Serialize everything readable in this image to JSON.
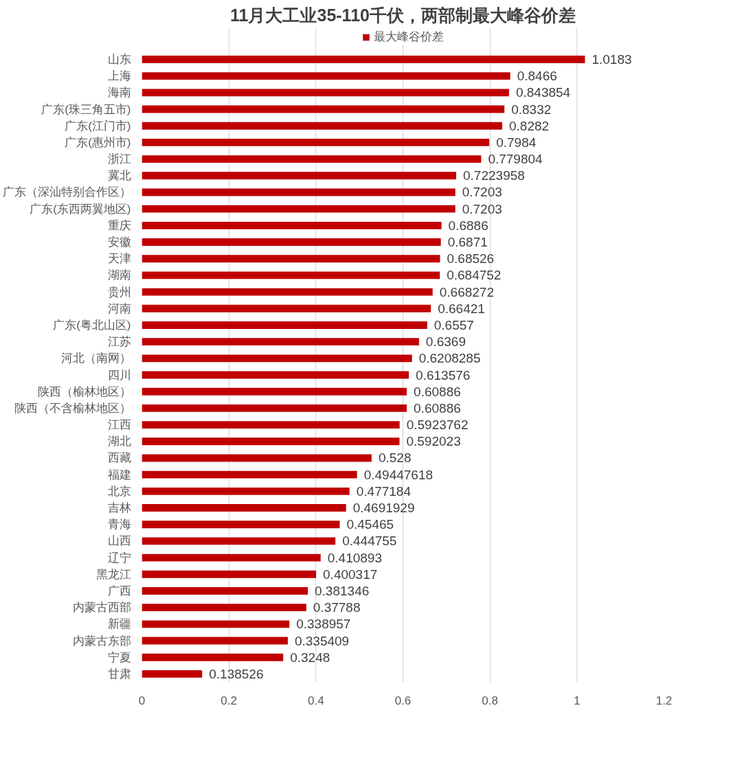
{
  "chart_data": {
    "type": "bar",
    "orientation": "horizontal",
    "title": "11月大工业35-110千伏，两部制最大峰谷价差",
    "categories": [
      "山东",
      "上海",
      "海南",
      "广东(珠三角五市)",
      "广东(江门市)",
      "广东(惠州市)",
      "浙江",
      "冀北",
      "广东（深汕特别合作区）",
      "广东(东西两翼地区)",
      "重庆",
      "安徽",
      "天津",
      "湖南",
      "贵州",
      "河南",
      "广东(粤北山区)",
      "江苏",
      "河北（南网）",
      "四川",
      "陕西（榆林地区）",
      "陕西（不含榆林地区）",
      "江西",
      "湖北",
      "西藏",
      "福建",
      "北京",
      "吉林",
      "青海",
      "山西",
      "辽宁",
      "黑龙江",
      "广西",
      "内蒙古西部",
      "新疆",
      "内蒙古东部",
      "宁夏",
      "甘肃"
    ],
    "series": [
      {
        "name": "最大峰谷价差",
        "color": "#c00000",
        "values": [
          1.0183,
          0.8466,
          0.843854,
          0.8332,
          0.8282,
          0.7984,
          0.779804,
          0.7223958,
          0.7203,
          0.7203,
          0.6886,
          0.6871,
          0.68526,
          0.684752,
          0.668272,
          0.66421,
          0.6557,
          0.6369,
          0.6208285,
          0.613576,
          0.60886,
          0.60886,
          0.5923762,
          0.592023,
          0.528,
          0.49447618,
          0.477184,
          0.4691929,
          0.45465,
          0.444755,
          0.410893,
          0.400317,
          0.381346,
          0.37788,
          0.338957,
          0.335409,
          0.3248,
          0.138526
        ]
      }
    ],
    "xlim": [
      0,
      1.2
    ],
    "xticks": [
      0,
      0.2,
      0.4,
      0.6,
      0.8,
      1,
      1.2
    ],
    "grid": "x",
    "legend": "top",
    "data_labels": true
  }
}
